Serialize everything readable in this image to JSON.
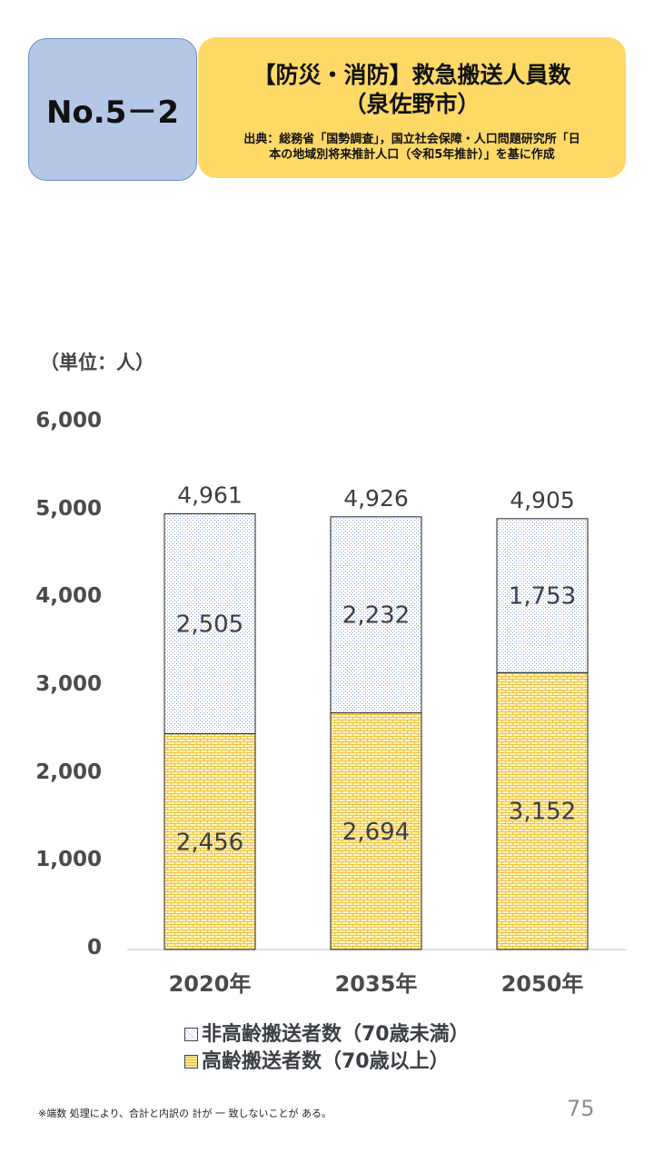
{
  "header": {
    "badge": "No.5－2",
    "title_line1": "【防災・消防】救急搬送人員数",
    "title_line2": "（泉佐野市）",
    "source_line1": "出典：総務省「国勢調査」，国立社会保障・人口問題研究所「日",
    "source_line2": "本の地域別将来推計人口（令和5年推計）」を基に作成"
  },
  "unit_label": "（単位：人）",
  "chart_data": {
    "type": "bar",
    "stacked": true,
    "categories": [
      "2020年",
      "2035年",
      "2050年"
    ],
    "series": [
      {
        "name": "高齢搬送者数（70歳以上）",
        "values": [
          2456,
          2694,
          3152
        ],
        "color": "#ffe699",
        "pattern": "brick"
      },
      {
        "name": "非高齢搬送者数（70歳未満）",
        "values": [
          2505,
          2232,
          1753
        ],
        "color": "#dae3f3",
        "pattern": "dots"
      }
    ],
    "totals": [
      4961,
      4926,
      4905
    ],
    "totals_labels": [
      "4,961",
      "4,926",
      "4,905"
    ],
    "value_labels": [
      [
        "2,456",
        "2,694",
        "3,152"
      ],
      [
        "2,505",
        "2,232",
        "1,753"
      ]
    ],
    "yticks": [
      "0",
      "1,000",
      "2,000",
      "3,000",
      "4,000",
      "5,000",
      "6,000"
    ],
    "ylim": [
      0,
      6000
    ],
    "legend_position": "bottom"
  },
  "legend": {
    "nonelderly": "非高齢搬送者数（70歳未満）",
    "elderly": "高齢搬送者数（70歳以上）"
  },
  "footnote": "※端数 処理により、合計と内訳の 計が 一 致しないことが ある。",
  "page_number": "75"
}
